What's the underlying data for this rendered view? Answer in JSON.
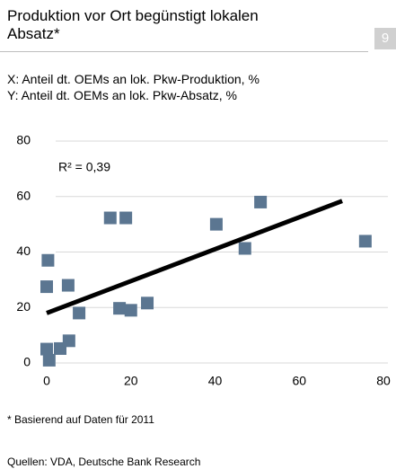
{
  "chart_data": {
    "type": "scatter",
    "title": "Produktion vor Ort begünstigt lokalen Absatz*",
    "page_number": "9",
    "x_label": "X: Anteil dt. OEMs an lok. Pkw-Produktion, %",
    "y_label": "Y: Anteil dt. OEMs an lok. Pkw-Absatz, %",
    "annotation": "R² = 0,39",
    "footnote": "* Basierend auf Daten für 2011",
    "source": "Quellen: VDA, Deutsche Bank Research",
    "color": "#5b7691",
    "trendline_color": "#000000",
    "x": [
      0,
      0.6,
      0.3,
      0,
      3.2,
      5.3,
      5.1,
      7.7,
      15.1,
      18.8,
      17.3,
      20,
      23.9,
      40.3,
      47.1,
      50.8,
      75.7
    ],
    "values": [
      5,
      1,
      37,
      27.5,
      5.2,
      8,
      28,
      18,
      52.3,
      52.3,
      19.7,
      19,
      21.6,
      50,
      41.3,
      58,
      43.9
    ],
    "trendline": {
      "x": [
        0,
        70.2
      ],
      "y": [
        18,
        58.4
      ]
    },
    "xlim": [
      0,
      80
    ],
    "xticks": [
      0,
      20,
      40,
      60,
      80
    ],
    "ylim": [
      0,
      80
    ],
    "yticks": [
      0,
      20,
      40,
      60,
      80
    ],
    "grid": true
  }
}
